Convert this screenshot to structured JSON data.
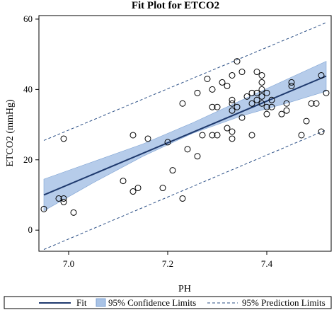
{
  "chart_data": {
    "type": "scatter",
    "title": "Fit Plot for ETCO2",
    "xlabel": "PH",
    "ylabel": "ETCO2 (mmHg)",
    "xlim": [
      6.94,
      7.53
    ],
    "ylim": [
      -6,
      61
    ],
    "xticks": [
      7.0,
      7.2,
      7.4
    ],
    "xtick_labels": [
      "7.0",
      "7.2",
      "7.4"
    ],
    "yticks": [
      0,
      20,
      40,
      60
    ],
    "ytick_labels": [
      "0",
      "20",
      "40",
      "60"
    ],
    "grid": false,
    "legend_position": "bottom",
    "colors": {
      "fit": "#1f3a6e",
      "confidence": "#a9c3e6",
      "confidence_edge": "#7fa3d3",
      "prediction": "#2b4f86",
      "points": "#000000"
    },
    "fit_line": {
      "x": [
        6.95,
        7.52
      ],
      "y": [
        10,
        43.8
      ]
    },
    "confidence_band": {
      "x": [
        6.95,
        7.05,
        7.15,
        7.25,
        7.35,
        7.45,
        7.52
      ],
      "lower": [
        5.5,
        13.5,
        21.0,
        27.5,
        32.5,
        36.5,
        39.5
      ],
      "upper": [
        14.5,
        19.5,
        24.5,
        30.5,
        37.0,
        43.5,
        48.0
      ]
    },
    "prediction_band": {
      "x": [
        6.95,
        7.52
      ],
      "lower": [
        -5.5,
        28.5
      ],
      "upper": [
        25.5,
        59.0
      ]
    },
    "points": [
      {
        "x": 6.95,
        "y": 6
      },
      {
        "x": 6.98,
        "y": 9
      },
      {
        "x": 6.99,
        "y": 9
      },
      {
        "x": 6.99,
        "y": 8
      },
      {
        "x": 6.99,
        "y": 26
      },
      {
        "x": 7.01,
        "y": 5
      },
      {
        "x": 7.11,
        "y": 14
      },
      {
        "x": 7.13,
        "y": 11
      },
      {
        "x": 7.14,
        "y": 12
      },
      {
        "x": 7.13,
        "y": 27
      },
      {
        "x": 7.16,
        "y": 26
      },
      {
        "x": 7.19,
        "y": 12
      },
      {
        "x": 7.2,
        "y": 25
      },
      {
        "x": 7.21,
        "y": 17
      },
      {
        "x": 7.23,
        "y": 9
      },
      {
        "x": 7.23,
        "y": 36
      },
      {
        "x": 7.24,
        "y": 23
      },
      {
        "x": 7.26,
        "y": 21
      },
      {
        "x": 7.26,
        "y": 39
      },
      {
        "x": 7.27,
        "y": 27
      },
      {
        "x": 7.28,
        "y": 43
      },
      {
        "x": 7.29,
        "y": 40
      },
      {
        "x": 7.29,
        "y": 35
      },
      {
        "x": 7.29,
        "y": 27
      },
      {
        "x": 7.3,
        "y": 35
      },
      {
        "x": 7.3,
        "y": 27
      },
      {
        "x": 7.31,
        "y": 42
      },
      {
        "x": 7.32,
        "y": 41
      },
      {
        "x": 7.32,
        "y": 29
      },
      {
        "x": 7.33,
        "y": 44
      },
      {
        "x": 7.33,
        "y": 37
      },
      {
        "x": 7.33,
        "y": 36
      },
      {
        "x": 7.33,
        "y": 34
      },
      {
        "x": 7.33,
        "y": 28
      },
      {
        "x": 7.33,
        "y": 26
      },
      {
        "x": 7.34,
        "y": 48
      },
      {
        "x": 7.34,
        "y": 35
      },
      {
        "x": 7.35,
        "y": 45
      },
      {
        "x": 7.35,
        "y": 32
      },
      {
        "x": 7.36,
        "y": 38
      },
      {
        "x": 7.37,
        "y": 39
      },
      {
        "x": 7.37,
        "y": 36
      },
      {
        "x": 7.37,
        "y": 27
      },
      {
        "x": 7.38,
        "y": 45
      },
      {
        "x": 7.38,
        "y": 39
      },
      {
        "x": 7.38,
        "y": 37
      },
      {
        "x": 7.39,
        "y": 44
      },
      {
        "x": 7.39,
        "y": 42
      },
      {
        "x": 7.39,
        "y": 40
      },
      {
        "x": 7.39,
        "y": 38
      },
      {
        "x": 7.39,
        "y": 36
      },
      {
        "x": 7.4,
        "y": 39
      },
      {
        "x": 7.4,
        "y": 35
      },
      {
        "x": 7.4,
        "y": 33
      },
      {
        "x": 7.41,
        "y": 37
      },
      {
        "x": 7.41,
        "y": 35
      },
      {
        "x": 7.43,
        "y": 33
      },
      {
        "x": 7.44,
        "y": 36
      },
      {
        "x": 7.44,
        "y": 34
      },
      {
        "x": 7.45,
        "y": 42
      },
      {
        "x": 7.45,
        "y": 41
      },
      {
        "x": 7.47,
        "y": 27
      },
      {
        "x": 7.48,
        "y": 31
      },
      {
        "x": 7.49,
        "y": 36
      },
      {
        "x": 7.5,
        "y": 36
      },
      {
        "x": 7.51,
        "y": 28
      },
      {
        "x": 7.51,
        "y": 44
      },
      {
        "x": 7.52,
        "y": 39
      }
    ],
    "legend": {
      "fit_label": "Fit",
      "confidence_label": "95% Confidence Limits",
      "prediction_label": "95% Prediction Limits"
    }
  }
}
